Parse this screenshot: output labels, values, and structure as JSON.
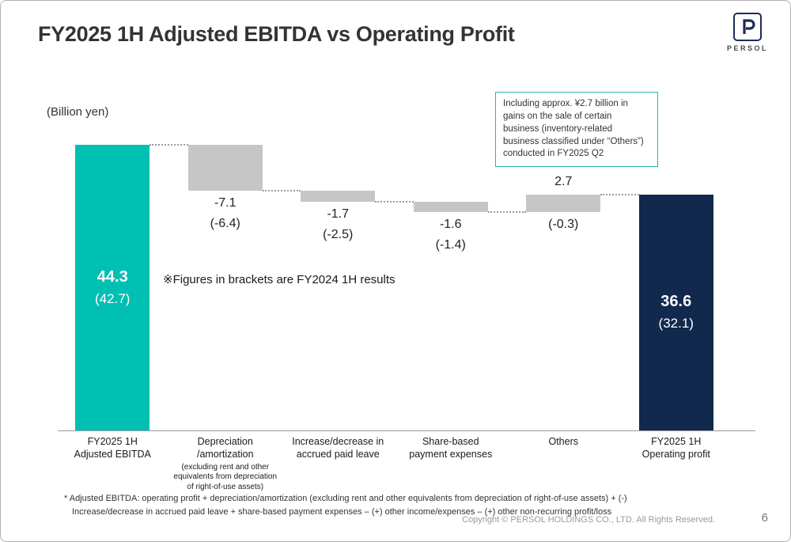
{
  "slide": {
    "title": "FY2025 1H Adjusted EBITDA vs Operating Profit",
    "unit_label": "(Billion yen)",
    "note": "※Figures in brackets are FY2024 1H results",
    "footnote_line1": "* Adjusted EBITDA: operating profit + depreciation/amortization (excluding rent and other equivalents from depreciation of right-of-use assets) + (-)",
    "footnote_line2": "Increase/decrease in accrued paid leave + share-based payment expenses – (+) other income/expenses – (+) other non-recurring profit/loss",
    "copyright": "Copyright © PERSOL HOLDINGS CO., LTD. All Rights Reserved.",
    "page_number": "6",
    "logo_text": "PERSOL"
  },
  "annotation_box": {
    "text": "Including approx. ¥2.7 billion in gains on the sale of certain business (inventory-related business classified under “Others”) conducted in FY2025 Q2",
    "border_color": "#2cb6ae"
  },
  "chart_data": {
    "type": "waterfall",
    "title": "FY2025 1H Adjusted EBITDA vs Operating Profit",
    "unit": "Billion yen",
    "ylim": [
      0,
      52.5
    ],
    "grid": false,
    "colors": {
      "start_total": "#00BFB3",
      "delta": "#C6C6C6",
      "end_total": "#12294E"
    },
    "bars": [
      {
        "id": "adjusted-ebitda",
        "category": "FY2025 1H\nAdjusted EBITDA",
        "type": "total",
        "value": 44.3,
        "prior": 42.7,
        "value_label": "44.3",
        "prior_label": "(42.7)",
        "color": "#00BFB3",
        "label_placement": "inside"
      },
      {
        "id": "depreciation-amortization",
        "category": "Depreciation\n/amortization",
        "category_sub": "(excluding rent and other\nequivalents from depreciation\nof right-of-use assets)",
        "type": "delta",
        "value": -7.1,
        "prior": -6.4,
        "value_label": "-7.1",
        "prior_label": "(-6.4)",
        "color": "#C6C6C6",
        "label_placement": "below"
      },
      {
        "id": "accrued-paid-leave",
        "category": "Increase/decrease in\naccrued paid leave",
        "type": "delta",
        "value": -1.7,
        "prior": -2.5,
        "value_label": "-1.7",
        "prior_label": "(-2.5)",
        "color": "#C6C6C6",
        "label_placement": "below"
      },
      {
        "id": "share-based-payment",
        "category": "Share-based\npayment expenses",
        "type": "delta",
        "value": -1.6,
        "prior": -1.4,
        "value_label": "-1.6",
        "prior_label": "(-1.4)",
        "color": "#C6C6C6",
        "label_placement": "below"
      },
      {
        "id": "others",
        "category": "Others",
        "type": "delta",
        "value": 2.7,
        "prior": -0.3,
        "value_label": "2.7",
        "prior_label": "(-0.3)",
        "color": "#C6C6C6",
        "label_placement": "above-below"
      },
      {
        "id": "operating-profit",
        "category": "FY2025 1H\nOperating profit",
        "type": "total",
        "value": 36.6,
        "prior": 32.1,
        "value_label": "36.6",
        "prior_label": "(32.1)",
        "color": "#12294E",
        "label_placement": "inside"
      }
    ]
  }
}
